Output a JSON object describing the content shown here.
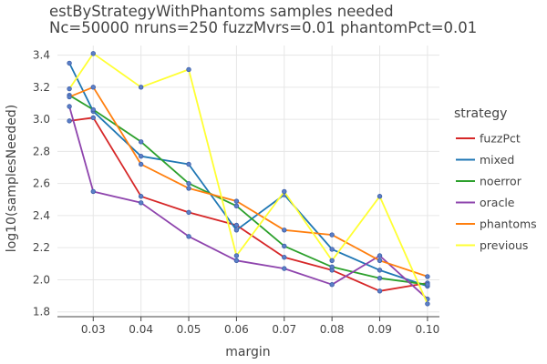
{
  "chart_data": {
    "type": "line",
    "title": "estByStrategyWithPhantoms samples needed",
    "subtitle": "Nc=50000 nruns=250 fuzzMvrs=0.01 phantomPct=0.01",
    "xlabel": "margin",
    "ylabel": "log10(samplesNeeded)",
    "xlim": [
      0.0225,
      0.1025
    ],
    "ylim": [
      1.77,
      3.46
    ],
    "xticks": [
      "0.03",
      "0.04",
      "0.05",
      "0.06",
      "0.07",
      "0.08",
      "0.09",
      "0.10"
    ],
    "yticks": [
      "1.8",
      "2.0",
      "2.2",
      "2.4",
      "2.6",
      "2.8",
      "3.0",
      "3.2",
      "3.4"
    ],
    "grid": true,
    "legend": {
      "title": "strategy",
      "placement": "right"
    },
    "series": [
      {
        "name": "fuzzPct",
        "color": "#d62728",
        "x": [
          0.025,
          0.03,
          0.04,
          0.05,
          0.06,
          0.07,
          0.08,
          0.09,
          0.1
        ],
        "y": [
          2.99,
          3.01,
          2.52,
          2.42,
          2.34,
          2.14,
          2.06,
          1.93,
          1.98
        ]
      },
      {
        "name": "mixed",
        "color": "#1f77b4",
        "x": [
          0.025,
          0.03,
          0.04,
          0.05,
          0.06,
          0.07,
          0.08,
          0.09,
          0.1
        ],
        "y": [
          3.35,
          3.05,
          2.77,
          2.72,
          2.31,
          2.53,
          2.19,
          2.06,
          1.96
        ]
      },
      {
        "name": "noerror",
        "color": "#2ca02c",
        "x": [
          0.025,
          0.03,
          0.04,
          0.05,
          0.06,
          0.07,
          0.08,
          0.09,
          0.1
        ],
        "y": [
          3.15,
          3.06,
          2.86,
          2.6,
          2.46,
          2.21,
          2.08,
          2.01,
          1.97
        ]
      },
      {
        "name": "oracle",
        "color": "#8e44ad",
        "x": [
          0.025,
          0.03,
          0.04,
          0.05,
          0.06,
          0.07,
          0.08,
          0.09,
          0.1
        ],
        "y": [
          3.08,
          2.55,
          2.48,
          2.27,
          2.12,
          2.07,
          1.97,
          2.15,
          1.88
        ]
      },
      {
        "name": "phantoms",
        "color": "#ff7f0e",
        "x": [
          0.025,
          0.03,
          0.04,
          0.05,
          0.06,
          0.07,
          0.08,
          0.09,
          0.1
        ],
        "y": [
          3.14,
          3.2,
          2.72,
          2.57,
          2.49,
          2.31,
          2.28,
          2.12,
          2.02
        ]
      },
      {
        "name": "previous",
        "color": "#ffff33",
        "x": [
          0.025,
          0.03,
          0.04,
          0.05,
          0.06,
          0.07,
          0.08,
          0.09,
          0.1
        ],
        "y": [
          3.19,
          3.41,
          3.2,
          3.31,
          2.15,
          2.55,
          2.12,
          2.52,
          1.85
        ]
      }
    ]
  }
}
